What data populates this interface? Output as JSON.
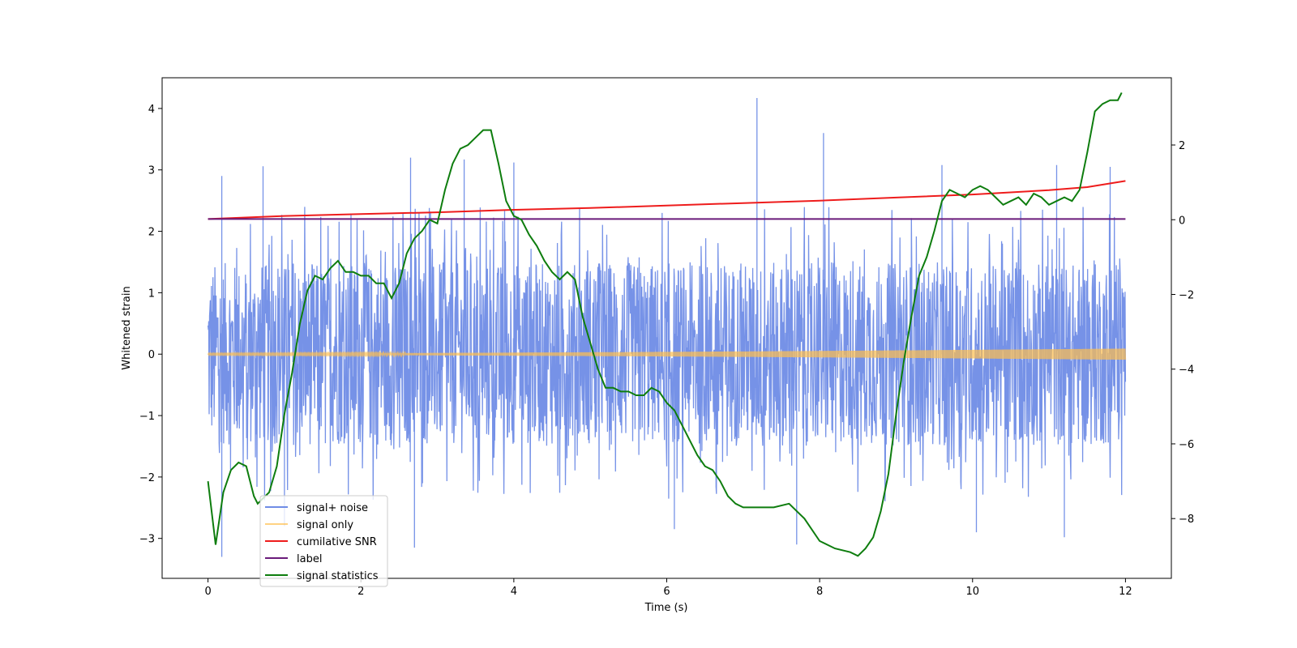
{
  "chart_data": {
    "type": "line",
    "title": "",
    "xlabel": "Time (s)",
    "ylabel": "Whitened strain",
    "y2label": "",
    "xlim": [
      -0.6,
      12.6
    ],
    "ylim": [
      -3.65,
      4.5
    ],
    "y2lim": [
      -9.6,
      3.8
    ],
    "x_ticks": [
      0,
      2,
      4,
      6,
      8,
      10,
      12
    ],
    "x_tick_labels": [
      "0",
      "2",
      "4",
      "6",
      "8",
      "10",
      "12"
    ],
    "y_ticks": [
      -3,
      -2,
      -1,
      0,
      1,
      2,
      3,
      4
    ],
    "y_tick_labels": [
      "−3",
      "−2",
      "−1",
      "0",
      "1",
      "2",
      "3",
      "4"
    ],
    "y2_ticks": [
      -8,
      -6,
      -4,
      -2,
      0,
      2
    ],
    "y2_tick_labels": [
      "−8",
      "−6",
      "−4",
      "−2",
      "0",
      "2"
    ],
    "grid": false,
    "legend_position": "lower-left",
    "series": [
      {
        "name": "signal+ noise",
        "axis": "left",
        "color": "#6f8ce6",
        "kind": "noise",
        "x_range": [
          0,
          12
        ],
        "typical_band": [
          -1.3,
          1.3
        ],
        "peaks_high": [
          [
            0.18,
            2.9
          ],
          [
            0.72,
            3.06
          ],
          [
            2.65,
            3.2
          ],
          [
            3.35,
            3.17
          ],
          [
            4.0,
            3.12
          ],
          [
            7.18,
            4.17
          ],
          [
            8.05,
            3.6
          ],
          [
            9.6,
            3.08
          ],
          [
            11.1,
            3.08
          ],
          [
            11.8,
            3.05
          ]
        ],
        "peaks_low": [
          [
            0.18,
            -3.3
          ],
          [
            1.0,
            -2.8
          ],
          [
            2.7,
            -3.15
          ],
          [
            6.1,
            -2.85
          ],
          [
            7.7,
            -3.1
          ],
          [
            10.05,
            -2.9
          ],
          [
            11.2,
            -2.98
          ]
        ]
      },
      {
        "name": "signal only",
        "axis": "left",
        "color": "#ffbf4d",
        "kind": "chirp",
        "x_range": [
          0,
          12
        ],
        "amplitude_start": 0.01,
        "amplitude_end": 0.09
      },
      {
        "name": "cumilative SNR",
        "axis": "left",
        "color": "#ee1c1c",
        "x": [
          0,
          1,
          2,
          3,
          4,
          5,
          6,
          7,
          8,
          9,
          10,
          11,
          11.5,
          12
        ],
        "y": [
          2.2,
          2.25,
          2.28,
          2.31,
          2.35,
          2.38,
          2.42,
          2.46,
          2.5,
          2.55,
          2.6,
          2.67,
          2.72,
          2.82
        ]
      },
      {
        "name": "label",
        "axis": "left",
        "color": "#6a1a7a",
        "x": [
          0,
          12
        ],
        "y": [
          2.2,
          2.2
        ]
      },
      {
        "name": "signal statistics",
        "axis": "right",
        "color": "#0e7d0e",
        "x": [
          0.0,
          0.1,
          0.2,
          0.3,
          0.4,
          0.5,
          0.55,
          0.6,
          0.65,
          0.7,
          0.8,
          0.9,
          1.0,
          1.1,
          1.2,
          1.3,
          1.4,
          1.5,
          1.6,
          1.7,
          1.8,
          1.9,
          2.0,
          2.1,
          2.2,
          2.3,
          2.4,
          2.5,
          2.6,
          2.7,
          2.8,
          2.9,
          3.0,
          3.1,
          3.2,
          3.3,
          3.4,
          3.5,
          3.6,
          3.7,
          3.8,
          3.9,
          4.0,
          4.1,
          4.2,
          4.3,
          4.4,
          4.5,
          4.6,
          4.7,
          4.8,
          4.9,
          5.0,
          5.1,
          5.2,
          5.3,
          5.4,
          5.5,
          5.6,
          5.7,
          5.8,
          5.9,
          6.0,
          6.1,
          6.2,
          6.3,
          6.4,
          6.5,
          6.6,
          6.7,
          6.8,
          6.9,
          7.0,
          7.2,
          7.4,
          7.6,
          7.8,
          8.0,
          8.2,
          8.4,
          8.5,
          8.6,
          8.7,
          8.8,
          8.9,
          9.0,
          9.1,
          9.2,
          9.3,
          9.4,
          9.5,
          9.6,
          9.7,
          9.8,
          9.9,
          10.0,
          10.1,
          10.2,
          10.3,
          10.4,
          10.5,
          10.6,
          10.7,
          10.8,
          10.9,
          11.0,
          11.1,
          11.2,
          11.3,
          11.4,
          11.5,
          11.6,
          11.7,
          11.8,
          11.9,
          11.95
        ],
        "y": [
          -7.0,
          -8.7,
          -7.3,
          -6.7,
          -6.5,
          -6.6,
          -7.0,
          -7.4,
          -7.6,
          -7.5,
          -7.3,
          -6.6,
          -5.2,
          -4.1,
          -2.8,
          -1.9,
          -1.5,
          -1.6,
          -1.3,
          -1.1,
          -1.4,
          -1.4,
          -1.5,
          -1.5,
          -1.7,
          -1.7,
          -2.1,
          -1.7,
          -0.9,
          -0.5,
          -0.3,
          0.0,
          -0.1,
          0.8,
          1.5,
          1.9,
          2.0,
          2.2,
          2.4,
          2.4,
          1.5,
          0.5,
          0.1,
          0.0,
          -0.4,
          -0.7,
          -1.1,
          -1.4,
          -1.6,
          -1.4,
          -1.6,
          -2.6,
          -3.3,
          -4.0,
          -4.5,
          -4.5,
          -4.6,
          -4.6,
          -4.7,
          -4.7,
          -4.5,
          -4.6,
          -4.9,
          -5.1,
          -5.5,
          -5.9,
          -6.3,
          -6.6,
          -6.7,
          -7.0,
          -7.4,
          -7.6,
          -7.7,
          -7.7,
          -7.7,
          -7.6,
          -8.0,
          -8.6,
          -8.8,
          -8.9,
          -9.0,
          -8.8,
          -8.5,
          -7.8,
          -6.8,
          -5.2,
          -3.8,
          -2.6,
          -1.5,
          -1.0,
          -0.3,
          0.5,
          0.8,
          0.7,
          0.6,
          0.8,
          0.9,
          0.8,
          0.6,
          0.4,
          0.5,
          0.6,
          0.4,
          0.7,
          0.6,
          0.4,
          0.5,
          0.6,
          0.5,
          0.8,
          1.8,
          2.9,
          3.1,
          3.2,
          3.2,
          3.4
        ]
      }
    ]
  }
}
